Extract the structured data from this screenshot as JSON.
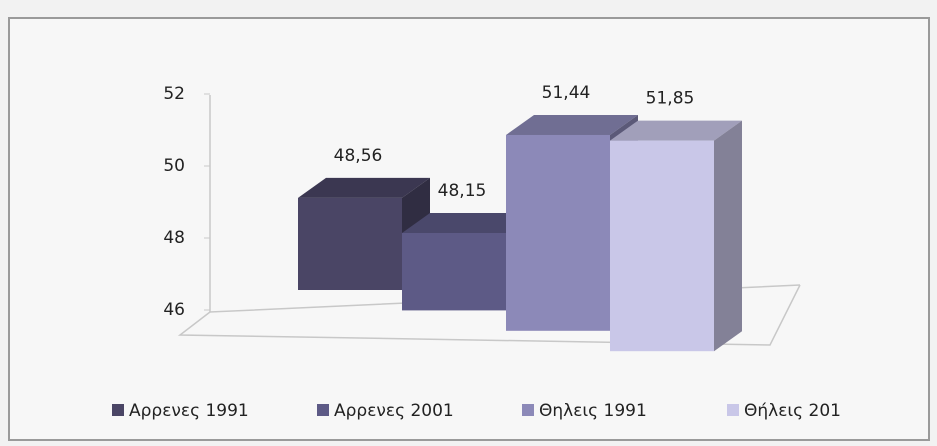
{
  "chart_data": {
    "type": "bar3d",
    "categories": [
      null
    ],
    "series": [
      {
        "name": "Αρρενες 1991",
        "color": "#4a4565",
        "values": [
          48.56
        ],
        "value_labels": [
          "48,56"
        ]
      },
      {
        "name": "Αρρενες 2001",
        "color": "#5d5a86",
        "values": [
          48.15
        ],
        "value_labels": [
          "48,15"
        ]
      },
      {
        "name": "Θηλεις 1991",
        "color": "#8c89b8",
        "values": [
          51.44
        ],
        "value_labels": [
          "51,44"
        ]
      },
      {
        "name": "Θήλεις 201",
        "color": "#c9c7e8",
        "values": [
          51.85
        ],
        "value_labels": [
          "51,85"
        ]
      }
    ],
    "ylim": [
      46,
      52
    ],
    "yticks": [
      46,
      48,
      50,
      52
    ],
    "legend": "bottom"
  }
}
